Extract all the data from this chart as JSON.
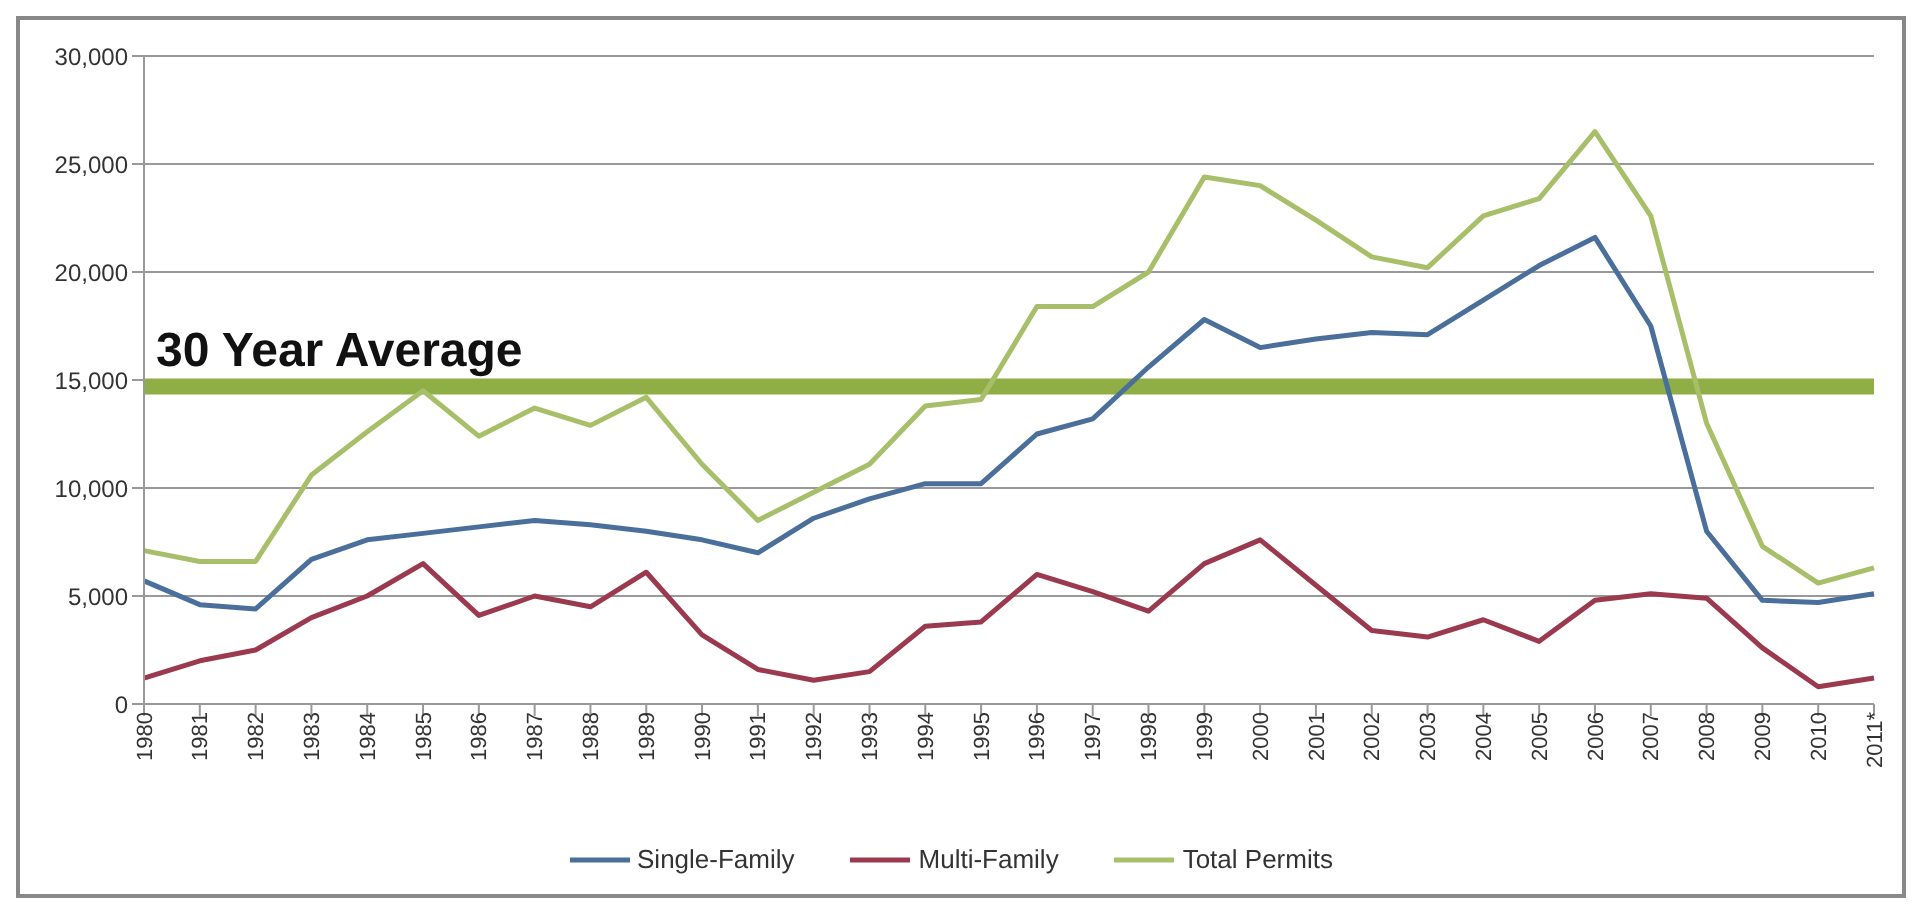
{
  "chart_data": {
    "type": "line",
    "categories": [
      "1980",
      "1981",
      "1982",
      "1983",
      "1984",
      "1985",
      "1986",
      "1987",
      "1988",
      "1989",
      "1990",
      "1991",
      "1992",
      "1993",
      "1994",
      "1995",
      "1996",
      "1997",
      "1998",
      "1999",
      "2000",
      "2001",
      "2002",
      "2003",
      "2004",
      "2005",
      "2006",
      "2007",
      "2008",
      "2009",
      "2010",
      "2011*"
    ],
    "series": [
      {
        "name": "Single-Family",
        "color": "#4a6f9a",
        "values": [
          5700,
          4600,
          4400,
          6700,
          7600,
          7900,
          8200,
          8500,
          8300,
          8000,
          7600,
          7000,
          8600,
          9500,
          10200,
          10200,
          12500,
          13200,
          15600,
          17800,
          16500,
          16900,
          17200,
          17100,
          18700,
          20300,
          21600,
          17500,
          8000,
          4800,
          4700,
          5100
        ]
      },
      {
        "name": "Multi-Family",
        "color": "#9b3a4e",
        "values": [
          1200,
          2000,
          2500,
          4000,
          5000,
          6500,
          4100,
          5000,
          4500,
          6100,
          3200,
          1600,
          1100,
          1500,
          3600,
          3800,
          6000,
          5200,
          4300,
          6500,
          7600,
          5500,
          3400,
          3100,
          3900,
          2900,
          4800,
          5100,
          4900,
          2600,
          800,
          1200
        ]
      },
      {
        "name": "Total Permits",
        "color": "#a8bf6a",
        "values": [
          7100,
          6600,
          6600,
          10600,
          12600,
          14500,
          12400,
          13700,
          12900,
          14200,
          11100,
          8500,
          9800,
          11100,
          13800,
          14100,
          18400,
          18400,
          20000,
          24400,
          24000,
          22400,
          20700,
          20200,
          22600,
          23400,
          26500,
          22600,
          13000,
          7300,
          5600,
          6300
        ]
      }
    ],
    "ylim": [
      0,
      30000
    ],
    "yticks": [
      {
        "value": 0,
        "label": "0"
      },
      {
        "value": 5000,
        "label": "5,000"
      },
      {
        "value": 10000,
        "label": "10,000"
      },
      {
        "value": 15000,
        "label": "15,000"
      },
      {
        "value": 20000,
        "label": "20,000"
      },
      {
        "value": 25000,
        "label": "25,000"
      },
      {
        "value": 30000,
        "label": "30,000"
      }
    ],
    "ref_lines": [
      {
        "axis": "y",
        "value": 14700,
        "label": "30 Year Average",
        "color": "#8fae45"
      }
    ],
    "grid": "y",
    "legend": "bottom",
    "marker": "none",
    "line_style": "solid"
  }
}
